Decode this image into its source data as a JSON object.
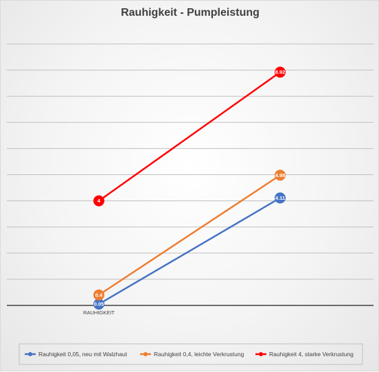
{
  "chart_data": {
    "type": "line",
    "title": "Rauhigkeit - Pumpleistung",
    "xlabel": "",
    "ylabel": "",
    "category_label": "RAUHIGKEIT",
    "ylim": [
      0,
      10
    ],
    "grid": true,
    "legend_position": "bottom",
    "series": [
      {
        "name": "Rauhigkeit 0,05, neu mit Walzhaut",
        "color": "#4472c4",
        "values": [
          0.05,
          4.11
        ],
        "labels": [
          "0.05",
          "4.11"
        ]
      },
      {
        "name": "Rauhigkeit 0,4, leichte Verkrustung",
        "color": "#ed7d31",
        "values": [
          0.4,
          4.98
        ],
        "labels": [
          "0.4",
          "4.98"
        ]
      },
      {
        "name": "Rauhigkeit 4, starke Verkrustung",
        "color": "#ff0000",
        "values": [
          4,
          8.92
        ],
        "labels": [
          "4",
          "8.92"
        ]
      }
    ]
  }
}
